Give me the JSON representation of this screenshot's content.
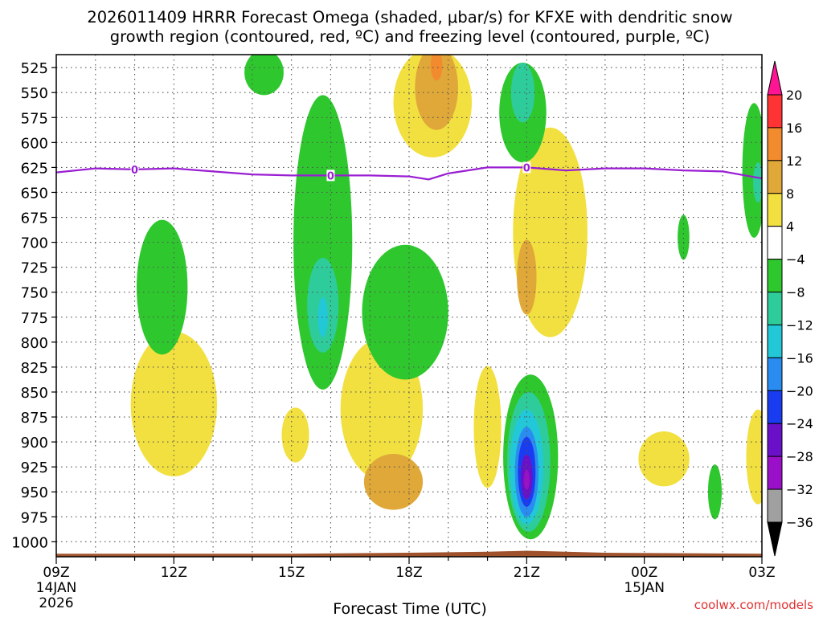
{
  "chart_data": {
    "type": "heatmap",
    "title_line1": "2026011409 HRRR Forecast Omega (shaded, μbar/s) for KFXE with dendritic snow",
    "title_line2": "growth region (contoured, red, ºC) and freezing level (contoured, purple, ºC)",
    "xlabel": "Forecast Time (UTC)",
    "ylabel": "",
    "credit": "coolwx.com/models",
    "x_range_hours": [
      0,
      18
    ],
    "y_range_hpa": [
      1015,
      512
    ],
    "y_ticks": [
      525,
      550,
      575,
      600,
      625,
      650,
      675,
      700,
      725,
      750,
      775,
      800,
      825,
      850,
      875,
      900,
      925,
      950,
      975,
      1000
    ],
    "x_ticks": [
      {
        "h": 0,
        "label": "09Z",
        "sub": "14JAN",
        "sub2": "2026"
      },
      {
        "h": 3,
        "label": "12Z",
        "sub": "",
        "sub2": ""
      },
      {
        "h": 6,
        "label": "15Z",
        "sub": "",
        "sub2": ""
      },
      {
        "h": 9,
        "label": "18Z",
        "sub": "",
        "sub2": ""
      },
      {
        "h": 12,
        "label": "21Z",
        "sub": "",
        "sub2": ""
      },
      {
        "h": 15,
        "label": "00Z",
        "sub": "15JAN",
        "sub2": ""
      },
      {
        "h": 18,
        "label": "03Z",
        "sub": "",
        "sub2": ""
      }
    ],
    "colorbar": {
      "labels": [
        "20",
        "16",
        "12",
        "8",
        "4",
        "−4",
        "−8",
        "−12",
        "−16",
        "−20",
        "−24",
        "−28",
        "−32",
        "−36"
      ],
      "colors": [
        "#ff1493",
        "#ff3333",
        "#f28a2e",
        "#e0a838",
        "#f2e040",
        "#ffffff",
        "#2ec82e",
        "#2ecc9a",
        "#22c8d8",
        "#2a8cf0",
        "#1a3cf0",
        "#6a10c8",
        "#9a10c8",
        "#a0a0a0",
        "#000000"
      ]
    },
    "freezing_level": {
      "label": "0",
      "hours": [
        0,
        1,
        2,
        3,
        4,
        5,
        6,
        7,
        8,
        9,
        9.5,
        10,
        11,
        12,
        13,
        14,
        15,
        16,
        17,
        18
      ],
      "hpa": [
        630,
        626,
        627,
        626,
        629,
        632,
        633,
        633,
        633,
        634,
        637,
        631,
        625,
        625,
        628,
        626,
        626,
        628,
        629,
        636
      ],
      "label_hours": [
        2,
        7,
        12
      ]
    },
    "omega_cells": [
      {
        "h": 8.3,
        "p": 867,
        "dh": 2.1,
        "dp": 142,
        "value": 4
      },
      {
        "h": 8.6,
        "p": 940,
        "dh": 1.5,
        "dp": 56,
        "value": 8
      },
      {
        "h": 3.0,
        "p": 862,
        "dh": 2.2,
        "dp": 145,
        "value": 4
      },
      {
        "h": 6.1,
        "p": 893,
        "dh": 0.7,
        "dp": 55,
        "value": 4
      },
      {
        "h": 9.6,
        "p": 560,
        "dh": 2.0,
        "dp": 110,
        "value": 4
      },
      {
        "h": 9.7,
        "p": 545,
        "dh": 1.1,
        "dp": 85,
        "value": 8
      },
      {
        "h": 9.7,
        "p": 523,
        "dh": 0.3,
        "dp": 30,
        "value": 12
      },
      {
        "h": 12.6,
        "p": 690,
        "dh": 1.9,
        "dp": 210,
        "value": 4
      },
      {
        "h": 12.0,
        "p": 735,
        "dh": 0.5,
        "dp": 75,
        "value": 8
      },
      {
        "h": 15.5,
        "p": 917,
        "dh": 1.3,
        "dp": 55,
        "value": 4
      },
      {
        "h": 11.0,
        "p": 885,
        "dh": 0.7,
        "dp": 122,
        "value": 4
      },
      {
        "h": 17.9,
        "p": 915,
        "dh": 0.6,
        "dp": 95,
        "value": 4
      },
      {
        "h": 2.7,
        "p": 745,
        "dh": 1.3,
        "dp": 135,
        "value": -4
      },
      {
        "h": 6.8,
        "p": 700,
        "dh": 1.5,
        "dp": 295,
        "value": -4
      },
      {
        "h": 6.8,
        "p": 763,
        "dh": 0.8,
        "dp": 95,
        "value": -8
      },
      {
        "h": 6.8,
        "p": 775,
        "dh": 0.25,
        "dp": 40,
        "value": -12
      },
      {
        "h": 8.9,
        "p": 770,
        "dh": 2.2,
        "dp": 135,
        "value": -4
      },
      {
        "h": 11.9,
        "p": 570,
        "dh": 1.2,
        "dp": 100,
        "value": -4
      },
      {
        "h": 11.9,
        "p": 550,
        "dh": 0.6,
        "dp": 60,
        "value": -8
      },
      {
        "h": 5.3,
        "p": 530,
        "dh": 1.0,
        "dp": 45,
        "value": -4
      },
      {
        "h": 12.1,
        "p": 915,
        "dh": 1.4,
        "dp": 165,
        "value": -4
      },
      {
        "h": 12.05,
        "p": 920,
        "dh": 1.1,
        "dp": 140,
        "value": -8
      },
      {
        "h": 12.0,
        "p": 925,
        "dh": 0.85,
        "dp": 115,
        "value": -12
      },
      {
        "h": 12.0,
        "p": 930,
        "dh": 0.6,
        "dp": 90,
        "value": -16
      },
      {
        "h": 12.0,
        "p": 930,
        "dh": 0.45,
        "dp": 70,
        "value": -24
      },
      {
        "h": 12.0,
        "p": 935,
        "dh": 0.3,
        "dp": 45,
        "value": -28
      },
      {
        "h": 12.0,
        "p": 938,
        "dh": 0.15,
        "dp": 20,
        "value": -32
      },
      {
        "h": 16.0,
        "p": 695,
        "dh": 0.3,
        "dp": 45,
        "value": -4
      },
      {
        "h": 16.8,
        "p": 950,
        "dh": 0.35,
        "dp": 55,
        "value": -4
      },
      {
        "h": 17.8,
        "p": 628,
        "dh": 0.6,
        "dp": 135,
        "value": -4
      },
      {
        "h": 17.9,
        "p": 640,
        "dh": 0.25,
        "dp": 40,
        "value": -8
      }
    ],
    "terrain": {
      "hours": [
        0,
        6,
        9,
        11,
        12,
        13,
        14,
        18
      ],
      "hpa": [
        1012,
        1012,
        1011,
        1010,
        1009,
        1010,
        1011,
        1012
      ]
    }
  }
}
